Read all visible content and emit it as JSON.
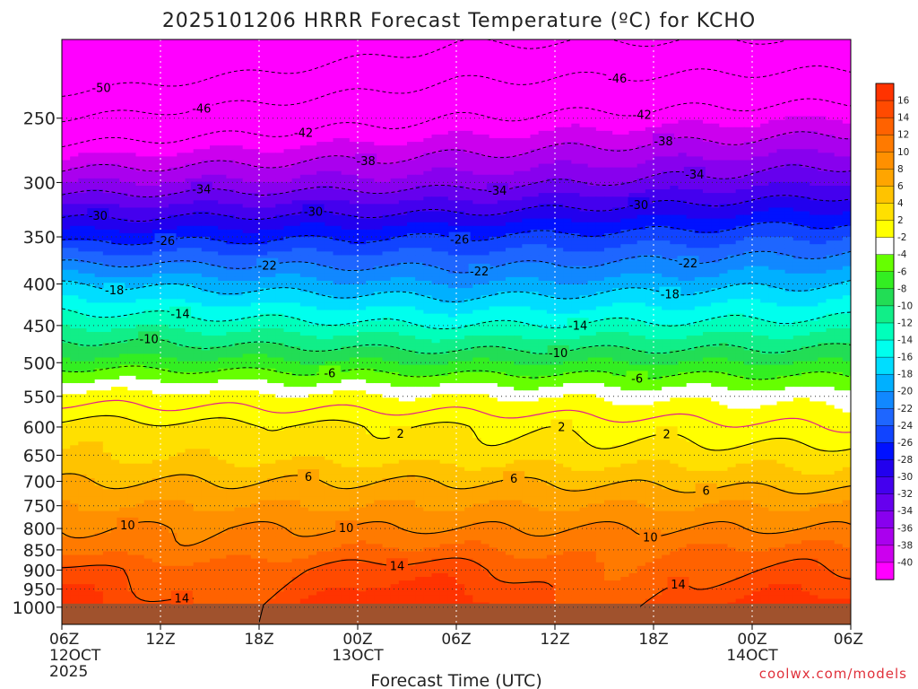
{
  "chart_data": {
    "type": "heatmap",
    "title": "2025101206 HRRR Forecast Temperature (ºC) for KCHO",
    "xlabel": "Forecast Time (UTC)",
    "ylabel": "",
    "x_ticks": [
      {
        "label": "06Z",
        "sub1": "12OCT",
        "sub2": "2025"
      },
      {
        "label": "12Z",
        "sub1": "",
        "sub2": ""
      },
      {
        "label": "18Z",
        "sub1": "",
        "sub2": ""
      },
      {
        "label": "00Z",
        "sub1": "13OCT",
        "sub2": ""
      },
      {
        "label": "06Z",
        "sub1": "",
        "sub2": ""
      },
      {
        "label": "12Z",
        "sub1": "",
        "sub2": ""
      },
      {
        "label": "18Z",
        "sub1": "",
        "sub2": ""
      },
      {
        "label": "00Z",
        "sub1": "14OCT",
        "sub2": ""
      },
      {
        "label": "06Z",
        "sub1": "",
        "sub2": ""
      }
    ],
    "x_range_hours": [
      0,
      48
    ],
    "y_axis": "pressure (hPa), log scale, inverted",
    "y_ticks": [
      250,
      300,
      350,
      400,
      450,
      500,
      550,
      600,
      650,
      700,
      750,
      800,
      850,
      900,
      950,
      1000
    ],
    "y_range": [
      200,
      1050
    ],
    "surface_pressure": 990,
    "legend": {
      "placement": "right",
      "labels": [
        "16",
        "14",
        "12",
        "10",
        "8",
        "6",
        "4",
        "2",
        "-2",
        "-4",
        "-6",
        "-8",
        "-10",
        "-12",
        "-14",
        "-16",
        "-18",
        "-20",
        "-22",
        "-24",
        "-26",
        "-28",
        "-30",
        "-32",
        "-34",
        "-36",
        "-38",
        "-40"
      ],
      "colors": [
        "#ff3300",
        "#ff4a00",
        "#ff6200",
        "#ff7a00",
        "#ff9000",
        "#ffa500",
        "#ffc300",
        "#ffe000",
        "#ffff00",
        "#ffffff",
        "#66ff00",
        "#33ee22",
        "#22dd55",
        "#11ee88",
        "#00ffbb",
        "#00ffee",
        "#00ddff",
        "#00b0ff",
        "#1188ff",
        "#1e66ff",
        "#1144ff",
        "#0011ff",
        "#2200ee",
        "#4400ee",
        "#6600ee",
        "#8800ee",
        "#aa00ee",
        "#cc00ee",
        "#ff00ff"
      ]
    },
    "profile_hourly_levels_hPa": [
      250,
      300,
      350,
      400,
      450,
      500,
      550,
      600,
      650,
      700,
      750,
      800,
      850,
      900,
      950,
      1000
    ],
    "profile_base": {
      "hours": [
        0,
        24,
        48
      ],
      "temps_deg_c": [
        [
          -46,
          -36,
          -27,
          -18,
          -12,
          -7,
          -1,
          3,
          4,
          6,
          8,
          10,
          11,
          14,
          15,
          16
        ],
        [
          -42,
          -35,
          -26,
          -20,
          -14,
          -8,
          -2,
          2,
          3,
          6,
          8,
          10,
          12,
          14,
          15,
          16
        ],
        [
          -40,
          -32,
          -24,
          -18,
          -13,
          -8,
          -3,
          0,
          3,
          5,
          8,
          10,
          12,
          13,
          14,
          15
        ]
      ]
    },
    "contours": [
      {
        "value": -50,
        "label_positions_hours": [
          2.4
        ]
      },
      {
        "value": -46,
        "label_positions_hours": [
          8.5,
          33.8
        ]
      },
      {
        "value": -42,
        "label_positions_hours": [
          14.7,
          35.3
        ]
      },
      {
        "value": -38,
        "label_positions_hours": [
          18.5,
          36.6
        ]
      },
      {
        "value": -34,
        "label_positions_hours": [
          8.5,
          26.5,
          38.5
        ]
      },
      {
        "value": -30,
        "label_positions_hours": [
          2.2,
          15.3,
          35.1
        ]
      },
      {
        "value": -26,
        "label_positions_hours": [
          6.3,
          24.2
        ]
      },
      {
        "value": -22,
        "label_positions_hours": [
          12.5,
          25.4,
          38.1
        ]
      },
      {
        "value": -18,
        "label_positions_hours": [
          3.2,
          37.0
        ]
      },
      {
        "value": -14,
        "label_positions_hours": [
          7.2,
          31.4
        ]
      },
      {
        "value": -10,
        "label_positions_hours": [
          5.3,
          30.2
        ]
      },
      {
        "value": -6,
        "label_positions_hours": [
          16.3,
          35.0
        ]
      },
      {
        "value": 2,
        "label_positions_hours": [
          20.6,
          30.4,
          36.8
        ]
      },
      {
        "value": 6,
        "label_positions_hours": [
          15.0,
          27.5,
          39.2
        ]
      },
      {
        "value": 10,
        "label_positions_hours": [
          4.0,
          17.3,
          35.8
        ]
      },
      {
        "value": 14,
        "label_positions_hours": [
          7.3,
          20.4,
          37.5
        ]
      }
    ]
  },
  "credit": "coolwx.com/models"
}
